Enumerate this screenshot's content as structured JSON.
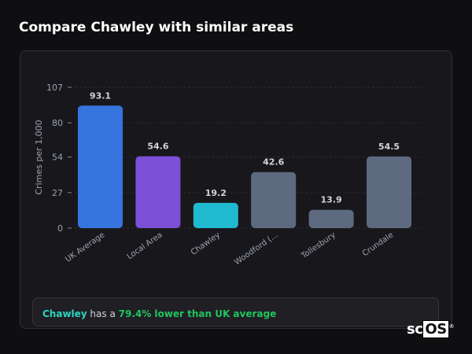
{
  "title": "Compare Chawley with similar areas",
  "chart_data": {
    "type": "bar",
    "ylabel": "Crimes per 1,000",
    "yticks": [
      0,
      27,
      54,
      80,
      107
    ],
    "ylim": [
      0,
      107
    ],
    "grid": true,
    "categories": [
      "UK Average",
      "Local Area",
      "Chawley",
      "Woodford (...",
      "Tollesbury",
      "Crundale"
    ],
    "values": [
      93.1,
      54.6,
      19.2,
      42.6,
      13.9,
      54.5
    ],
    "value_labels": [
      "93.1",
      "54.6",
      "19.2",
      "42.6",
      "13.9",
      "54.5"
    ],
    "colors": [
      "#3575dd",
      "#7b4fd6",
      "#1fb9d0",
      "#5d6a80",
      "#5d6a80",
      "#5d6a80"
    ]
  },
  "summary": {
    "area": "Chawley",
    "middle": " has a ",
    "comparison": "79.4% lower than UK average",
    "area_color": "#2dd4bf",
    "comparison_color": "#22c55e"
  },
  "logo": {
    "text": "scOS",
    "mark": "®"
  }
}
